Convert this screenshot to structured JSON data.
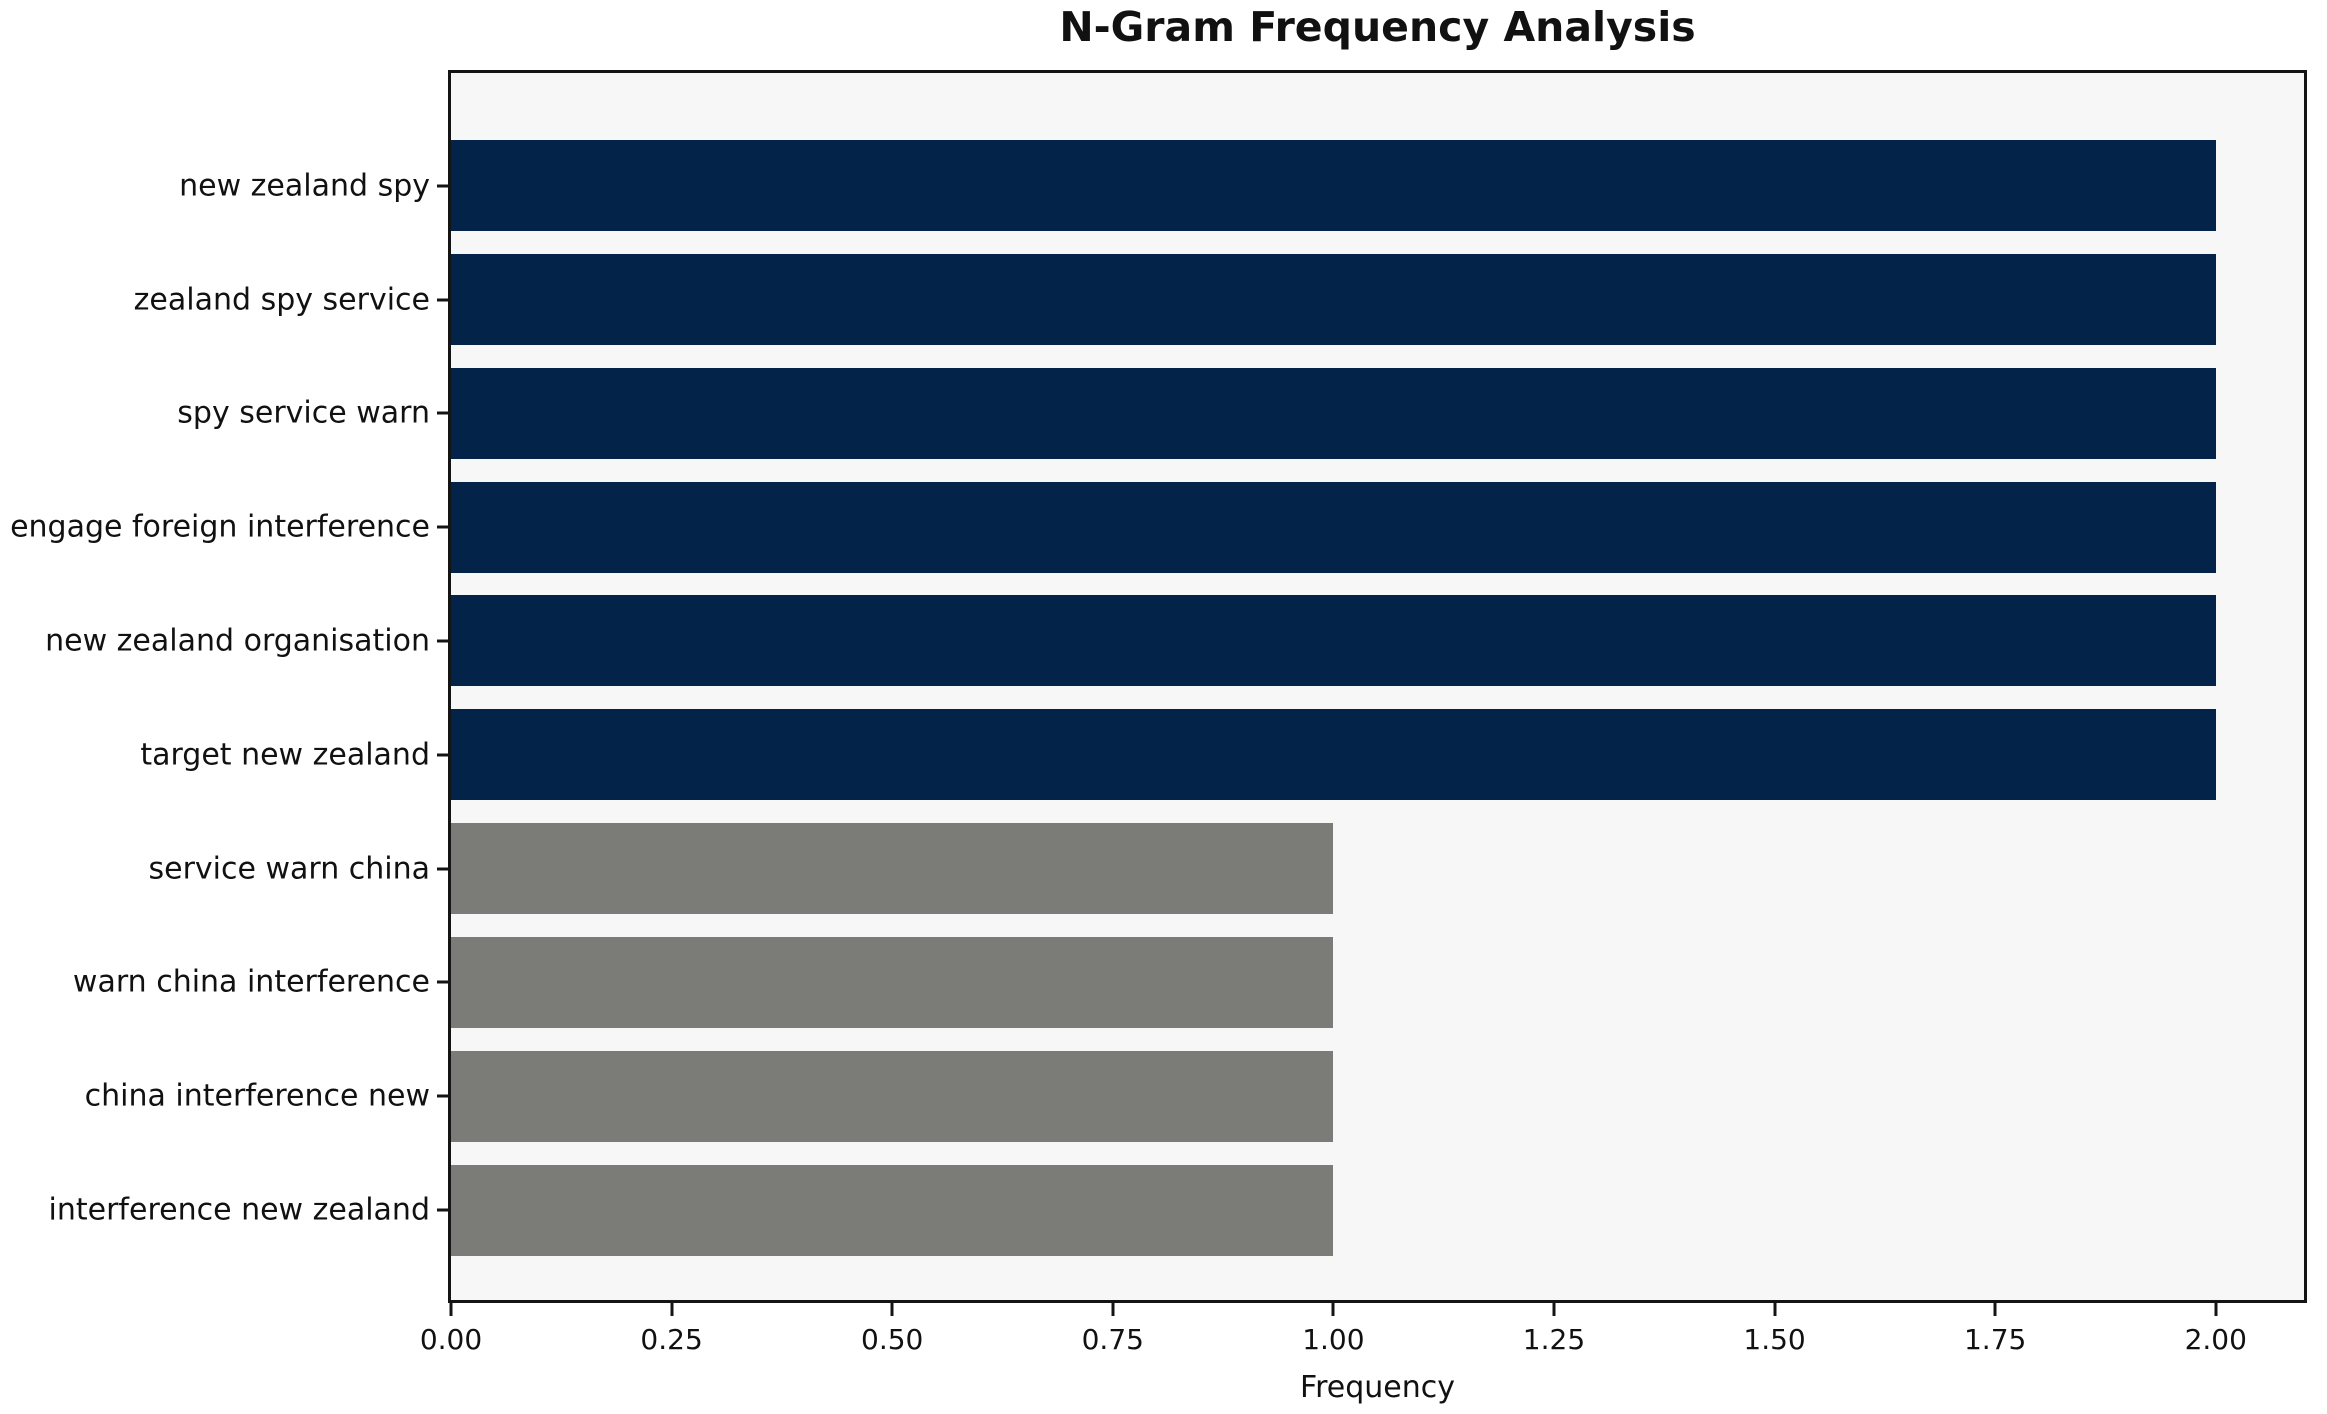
{
  "chart_data": {
    "type": "bar",
    "orientation": "horizontal",
    "title": "N-Gram Frequency Analysis",
    "xlabel": "Frequency",
    "ylabel": "",
    "categories": [
      "new zealand spy",
      "zealand spy service",
      "spy service warn",
      "engage foreign interference",
      "new zealand organisation",
      "target new zealand",
      "service warn china",
      "warn china interference",
      "china interference new",
      "interference new zealand"
    ],
    "values": [
      2,
      2,
      2,
      2,
      2,
      2,
      1,
      1,
      1,
      1
    ],
    "bar_colors": [
      "#032349",
      "#032349",
      "#032349",
      "#032349",
      "#032349",
      "#032349",
      "#7b7b78",
      "#7b7b78",
      "#7b7b78",
      "#7b7b78"
    ],
    "xlim": [
      0,
      2.1
    ],
    "xtick_values": [
      0,
      0.25,
      0.5,
      0.75,
      1.0,
      1.25,
      1.5,
      1.75,
      2.0
    ],
    "xtick_labels": [
      "0.00",
      "0.25",
      "0.50",
      "0.75",
      "1.00",
      "1.25",
      "1.50",
      "1.75",
      "2.00"
    ],
    "grid": false,
    "legend": false,
    "plot_background": "#f7f7f7",
    "figure_background": "#ffffff",
    "colors": {
      "high_frequency_bar": "#032349",
      "low_frequency_bar": "#7b7b78",
      "axis": "#141414"
    }
  }
}
